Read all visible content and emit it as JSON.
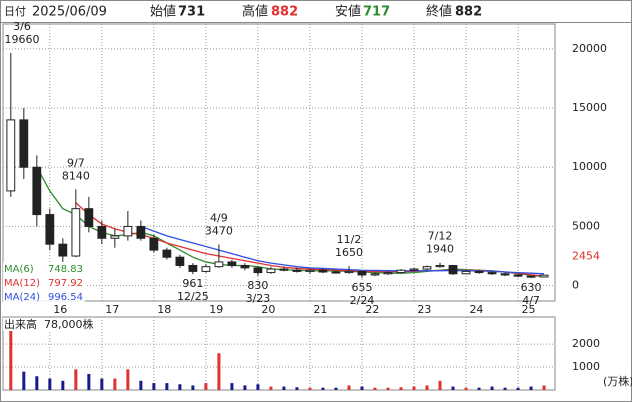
{
  "header": {
    "date_label": "日付",
    "date": "2025/06/09",
    "open_label": "始値",
    "open": 731,
    "high_label": "高値",
    "high": 882,
    "low_label": "安値",
    "low": 717,
    "close_label": "終値",
    "close": 882
  },
  "chart_data": {
    "type": "candlestick",
    "x": [
      2015.25,
      2015.5,
      2015.75,
      2016,
      2016.25,
      2016.5,
      2016.75,
      2017,
      2017.25,
      2017.5,
      2017.75,
      2018,
      2018.25,
      2018.5,
      2018.75,
      2019,
      2019.25,
      2019.5,
      2019.75,
      2020,
      2020.25,
      2020.5,
      2020.75,
      2021,
      2021.25,
      2021.5,
      2021.75,
      2022,
      2022.25,
      2022.5,
      2022.75,
      2023,
      2023.25,
      2023.5,
      2023.75,
      2024,
      2024.25,
      2024.5,
      2024.75,
      2025,
      2025.25,
      2025.5
    ],
    "open": [
      8000,
      14000,
      10000,
      6000,
      3500,
      2500,
      6500,
      5000,
      4000,
      4200,
      5000,
      4000,
      3000,
      2400,
      1700,
      1200,
      1600,
      2000,
      1700,
      1500,
      1100,
      1400,
      1300,
      1200,
      1300,
      1150,
      1100,
      1200,
      900,
      1000,
      1100,
      1300,
      1400,
      1600,
      1700,
      1000,
      1200,
      1100,
      1000,
      900,
      800,
      731
    ],
    "high": [
      19660,
      15000,
      11000,
      6500,
      4000,
      8140,
      7500,
      5500,
      4800,
      6300,
      5500,
      4300,
      3200,
      2600,
      1900,
      1800,
      3470,
      2200,
      1900,
      1600,
      1600,
      1600,
      1500,
      1400,
      1450,
      1300,
      1650,
      1250,
      1100,
      1200,
      1400,
      1500,
      1700,
      1940,
      1750,
      1300,
      1350,
      1200,
      1100,
      950,
      850,
      882
    ],
    "low": [
      7500,
      9000,
      5000,
      3000,
      2000,
      2400,
      4500,
      3500,
      3200,
      3800,
      3800,
      2800,
      2200,
      1500,
      961,
      1100,
      1500,
      1500,
      1300,
      830,
      1000,
      1200,
      1100,
      1000,
      1050,
      1000,
      1000,
      655,
      800,
      900,
      1000,
      1200,
      1300,
      1500,
      900,
      950,
      1000,
      900,
      800,
      700,
      630,
      717
    ],
    "close": [
      14000,
      10000,
      6000,
      3500,
      2500,
      6500,
      5000,
      4000,
      4200,
      5000,
      4000,
      3000,
      2400,
      1700,
      1200,
      1600,
      2000,
      1700,
      1500,
      1100,
      1400,
      1300,
      1200,
      1300,
      1150,
      1100,
      1200,
      900,
      1000,
      1100,
      1300,
      1400,
      1600,
      1700,
      1000,
      1200,
      1100,
      1000,
      900,
      800,
      750,
      882
    ],
    "up_color": "#ffffff",
    "down_color": "#222222",
    "moving_averages": [
      {
        "name": "MA(6)",
        "color": "#2e8b2e",
        "latest": 748.83,
        "values": [
          null,
          null,
          10000,
          8000,
          6500,
          6000,
          5000,
          4500,
          4200,
          4300,
          4500,
          4200,
          3600,
          3000,
          2400,
          2000,
          1800,
          1700,
          1700,
          1600,
          1400,
          1350,
          1300,
          1250,
          1250,
          1250,
          1200,
          1150,
          1100,
          1050,
          1050,
          1100,
          1200,
          1300,
          1400,
          1350,
          1300,
          1250,
          1150,
          1000,
          880,
          748.83
        ]
      },
      {
        "name": "MA(12)",
        "color": "#e03030",
        "latest": 797.92,
        "values": [
          null,
          null,
          null,
          null,
          null,
          7000,
          6000,
          5200,
          4800,
          4500,
          4300,
          4000,
          3600,
          3300,
          3000,
          2700,
          2500,
          2300,
          2100,
          1900,
          1700,
          1550,
          1450,
          1400,
          1350,
          1300,
          1250,
          1200,
          1180,
          1170,
          1180,
          1200,
          1250,
          1280,
          1300,
          1300,
          1280,
          1220,
          1150,
          1050,
          920,
          797.92
        ]
      },
      {
        "name": "MA(24)",
        "color": "#3050e0",
        "latest": 996.54,
        "values": [
          null,
          null,
          null,
          null,
          null,
          null,
          null,
          null,
          null,
          null,
          5000,
          4600,
          4200,
          3900,
          3600,
          3300,
          3000,
          2700,
          2400,
          2100,
          1900,
          1750,
          1600,
          1500,
          1450,
          1400,
          1350,
          1300,
          1280,
          1260,
          1250,
          1250,
          1250,
          1260,
          1270,
          1260,
          1240,
          1200,
          1150,
          1100,
          1050,
          996.54
        ]
      }
    ],
    "xlim": [
      2015.1,
      2025.71
    ],
    "xticks": [
      {
        "value": 2016,
        "label": "16"
      },
      {
        "value": 2017,
        "label": "17"
      },
      {
        "value": 2018,
        "label": "18"
      },
      {
        "value": 2019,
        "label": "19"
      },
      {
        "value": 2020,
        "label": "20"
      },
      {
        "value": 2021,
        "label": "21"
      },
      {
        "value": 2022,
        "label": "22"
      },
      {
        "value": 2023,
        "label": "23"
      },
      {
        "value": 2024,
        "label": "24"
      },
      {
        "value": 2025,
        "label": "25"
      }
    ],
    "ylim": [
      -1300,
      22100
    ],
    "yticks": [
      0,
      5000,
      10000,
      15000,
      20000
    ],
    "marker": {
      "value": 2454,
      "color": "#e03030"
    },
    "annotations": [
      {
        "date": "3/6",
        "value": 19660,
        "x": 2015.25
      },
      {
        "date": "9/7",
        "value": 8140,
        "x": 2016.5
      },
      {
        "date": "12/25",
        "value": 961,
        "x": 2018.75
      },
      {
        "date": "4/9",
        "value": 3470,
        "x": 2019.25
      },
      {
        "date": "3/23",
        "value": 830,
        "x": 2020
      },
      {
        "date": "11/2",
        "value": 1650,
        "x": 2021.75
      },
      {
        "date": "2/24",
        "value": 655,
        "x": 2022
      },
      {
        "date": "7/12",
        "value": 1940,
        "x": 2023.5
      },
      {
        "date": "4/7",
        "value": 630,
        "x": 2025.25
      }
    ],
    "volume": {
      "title": "出来高",
      "last": "78,000株",
      "unit": "(万株)",
      "up_color": "#e03030",
      "down_color": "#1a1a8c",
      "values": [
        2900,
        800,
        600,
        500,
        400,
        900,
        700,
        500,
        500,
        900,
        400,
        300,
        300,
        250,
        200,
        300,
        1600,
        300,
        200,
        250,
        150,
        150,
        120,
        100,
        100,
        100,
        200,
        150,
        100,
        100,
        120,
        150,
        200,
        400,
        150,
        100,
        100,
        150,
        100,
        100,
        150,
        200
      ],
      "ylim": [
        0,
        3180
      ],
      "yticks": [
        1000,
        2000
      ]
    },
    "grid": true
  }
}
